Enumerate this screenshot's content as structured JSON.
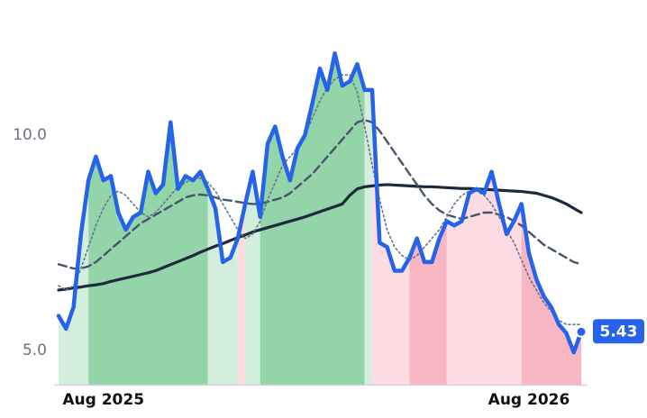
{
  "chart_data": {
    "type": "line",
    "categories": [
      null,
      null,
      null,
      null,
      null,
      null,
      "Aug 2025",
      null,
      null,
      null,
      null,
      null,
      null,
      null,
      null,
      null,
      null,
      null,
      null,
      null,
      null,
      null,
      null,
      null,
      null,
      null,
      null,
      null,
      null,
      null,
      null,
      null,
      null,
      null,
      null,
      null,
      null,
      null,
      null,
      null,
      null,
      null,
      null,
      null,
      null,
      null,
      null,
      null,
      null,
      null,
      null,
      null,
      null,
      null,
      null,
      null,
      null,
      null,
      null,
      null,
      null,
      null,
      null,
      "Aug 2026",
      null,
      null,
      null,
      null,
      null,
      null,
      null
    ],
    "series": [
      {
        "color": "#2563eb",
        "style": "solid",
        "values": [
          5.8,
          5.5,
          6.0,
          7.7,
          8.95,
          9.5,
          8.95,
          9.05,
          8.2,
          7.8,
          8.1,
          8.2,
          9.15,
          8.65,
          8.85,
          10.3,
          8.75,
          9.05,
          8.95,
          9.15,
          8.75,
          8.3,
          7.05,
          7.15,
          7.6,
          8.4,
          9.15,
          8.1,
          9.8,
          10.2,
          9.5,
          8.95,
          9.7,
          10.0,
          10.75,
          11.55,
          11.05,
          11.9,
          11.15,
          11.25,
          11.65,
          11.05,
          11.05,
          7.5,
          7.4,
          6.85,
          6.85,
          7.15,
          7.6,
          7.05,
          7.05,
          7.6,
          8.0,
          7.9,
          8.0,
          8.65,
          8.75,
          8.65,
          9.15,
          8.4,
          7.7,
          8.0,
          8.4,
          7.25,
          6.65,
          6.25,
          6.0,
          5.6,
          5.4,
          4.95,
          5.43
        ]
      },
      {
        "color": "#1e293b",
        "style": "solid-thin",
        "values": [
          6.4,
          6.42,
          6.45,
          6.47,
          6.5,
          6.52,
          6.55,
          6.6,
          6.64,
          6.68,
          6.72,
          6.76,
          6.8,
          6.85,
          6.92,
          6.99,
          7.06,
          7.13,
          7.2,
          7.28,
          7.35,
          7.42,
          7.48,
          7.55,
          7.62,
          7.68,
          7.75,
          7.8,
          7.85,
          7.9,
          7.95,
          8.0,
          8.05,
          8.1,
          8.16,
          8.22,
          8.28,
          8.34,
          8.4,
          8.6,
          8.75,
          8.8,
          8.82,
          8.84,
          8.85,
          8.84,
          8.83,
          8.82,
          8.81,
          8.8,
          8.8,
          8.79,
          8.78,
          8.77,
          8.76,
          8.76,
          8.75,
          8.74,
          8.73,
          8.72,
          8.71,
          8.7,
          8.69,
          8.67,
          8.65,
          8.6,
          8.55,
          8.48,
          8.4,
          8.3,
          8.2
        ]
      },
      {
        "color": "#475569",
        "style": "dashed",
        "values": [
          7.0,
          6.95,
          6.9,
          6.9,
          6.95,
          7.05,
          7.2,
          7.35,
          7.5,
          7.65,
          7.8,
          7.95,
          8.05,
          8.15,
          8.25,
          8.35,
          8.45,
          8.55,
          8.6,
          8.62,
          8.6,
          8.55,
          8.5,
          8.48,
          8.45,
          8.42,
          8.4,
          8.4,
          8.45,
          8.5,
          8.55,
          8.65,
          8.8,
          8.95,
          9.1,
          9.3,
          9.5,
          9.7,
          9.9,
          10.1,
          10.3,
          10.35,
          10.3,
          10.1,
          9.85,
          9.6,
          9.35,
          9.1,
          8.85,
          8.6,
          8.4,
          8.25,
          8.15,
          8.1,
          8.05,
          8.1,
          8.15,
          8.2,
          8.2,
          8.15,
          8.1,
          8.0,
          7.9,
          7.75,
          7.6,
          7.45,
          7.35,
          7.25,
          7.15,
          7.05,
          7.0
        ]
      },
      {
        "color": "#64748b",
        "style": "dotted",
        "values": [
          6.5,
          6.4,
          6.5,
          6.9,
          7.4,
          7.9,
          8.3,
          8.6,
          8.7,
          8.6,
          8.4,
          8.2,
          8.1,
          8.2,
          8.4,
          8.6,
          8.8,
          8.9,
          9.0,
          9.0,
          8.9,
          8.7,
          8.4,
          8.1,
          7.8,
          7.6,
          7.7,
          8.0,
          8.5,
          8.9,
          9.3,
          9.5,
          9.7,
          10.0,
          10.4,
          10.8,
          11.1,
          11.3,
          11.4,
          11.4,
          11.0,
          10.2,
          9.3,
          8.5,
          7.8,
          7.4,
          7.2,
          7.1,
          7.2,
          7.4,
          7.6,
          7.8,
          8.1,
          8.4,
          8.6,
          8.7,
          8.7,
          8.6,
          8.4,
          8.1,
          7.8,
          7.5,
          7.1,
          6.7,
          6.4,
          6.1,
          5.9,
          5.7,
          5.6,
          5.6,
          5.6
        ]
      }
    ],
    "zones": [
      {
        "from": 0,
        "to": 4,
        "color": "#d3eedc"
      },
      {
        "from": 4,
        "to": 20,
        "color": "#93d4a9"
      },
      {
        "from": 20,
        "to": 24,
        "color": "#d3eedc"
      },
      {
        "from": 24,
        "to": 25,
        "color": "#fcdbe2"
      },
      {
        "from": 25,
        "to": 27,
        "color": "#d3eedc"
      },
      {
        "from": 27,
        "to": 41,
        "color": "#93d4a9"
      },
      {
        "from": 41,
        "to": 42,
        "color": "#d3eedc"
      },
      {
        "from": 42,
        "to": 47,
        "color": "#fcdbe2"
      },
      {
        "from": 47,
        "to": 52,
        "color": "#f8b5c2"
      },
      {
        "from": 52,
        "to": 62,
        "color": "#fcdbe2"
      },
      {
        "from": 62,
        "to": 70,
        "color": "#f8b5c2"
      }
    ],
    "ylim": [
      4.2,
      13.1
    ],
    "yticks": [
      {
        "value": 5,
        "label": "5.0"
      },
      {
        "value": 10,
        "label": "10.0"
      }
    ],
    "grid": false
  }
}
